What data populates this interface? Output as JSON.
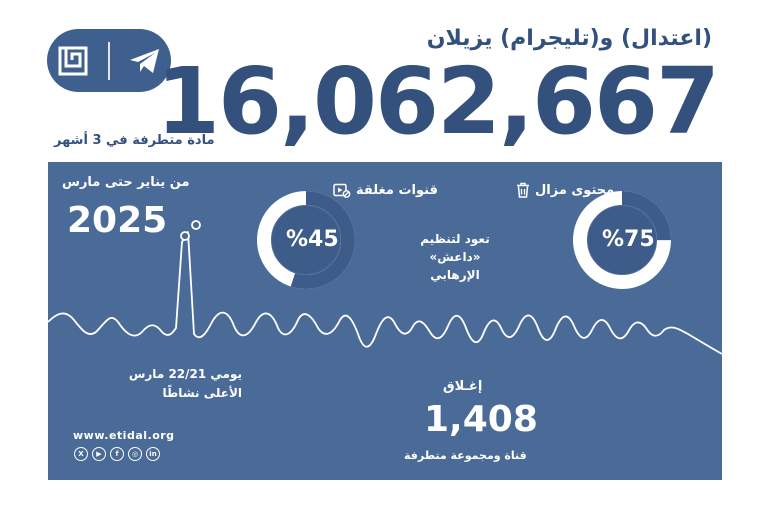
{
  "header": {
    "title": "(اعتدال) و(تليجرام) يزيلان",
    "big_number": "16,062,667",
    "subtitle": "مادة متطرفة في 3 أشهر",
    "logos": [
      "etidal-calligraphy-logo",
      "telegram-icon"
    ]
  },
  "period": {
    "label": "من يناير حتى مارس",
    "year": "2025"
  },
  "stats": {
    "removed_content": {
      "label": "محتوى مزال",
      "percent_text": "%75",
      "percent": 75,
      "icon": "trash-icon"
    },
    "closed_channels": {
      "label": "قنوات مغلقة",
      "percent_text": "%45",
      "percent": 45,
      "icon": "video-blocked-icon"
    },
    "isis_note_line1": "تعود لتنظيم «داعش»",
    "isis_note_line2": "الإرهابي"
  },
  "peak": {
    "line1": "يومي 22/21 مارس",
    "line2": "الأعلى نشاطًا"
  },
  "closure": {
    "label": "إغـلاق",
    "number": "1,408",
    "sub": "قناة ومجموعة متطرفة"
  },
  "footer": {
    "site": "www.etidal.org",
    "socials": [
      {
        "name": "x-icon",
        "glyph": "X"
      },
      {
        "name": "youtube-icon",
        "glyph": "▶"
      },
      {
        "name": "facebook-icon",
        "glyph": "f"
      },
      {
        "name": "instagram-icon",
        "glyph": "◎"
      },
      {
        "name": "linkedin-icon",
        "glyph": "in"
      }
    ]
  },
  "colors": {
    "primary": "#34517e",
    "panel": "#4a6a98",
    "donut_track": "#3d5c89",
    "white": "#ffffff"
  }
}
